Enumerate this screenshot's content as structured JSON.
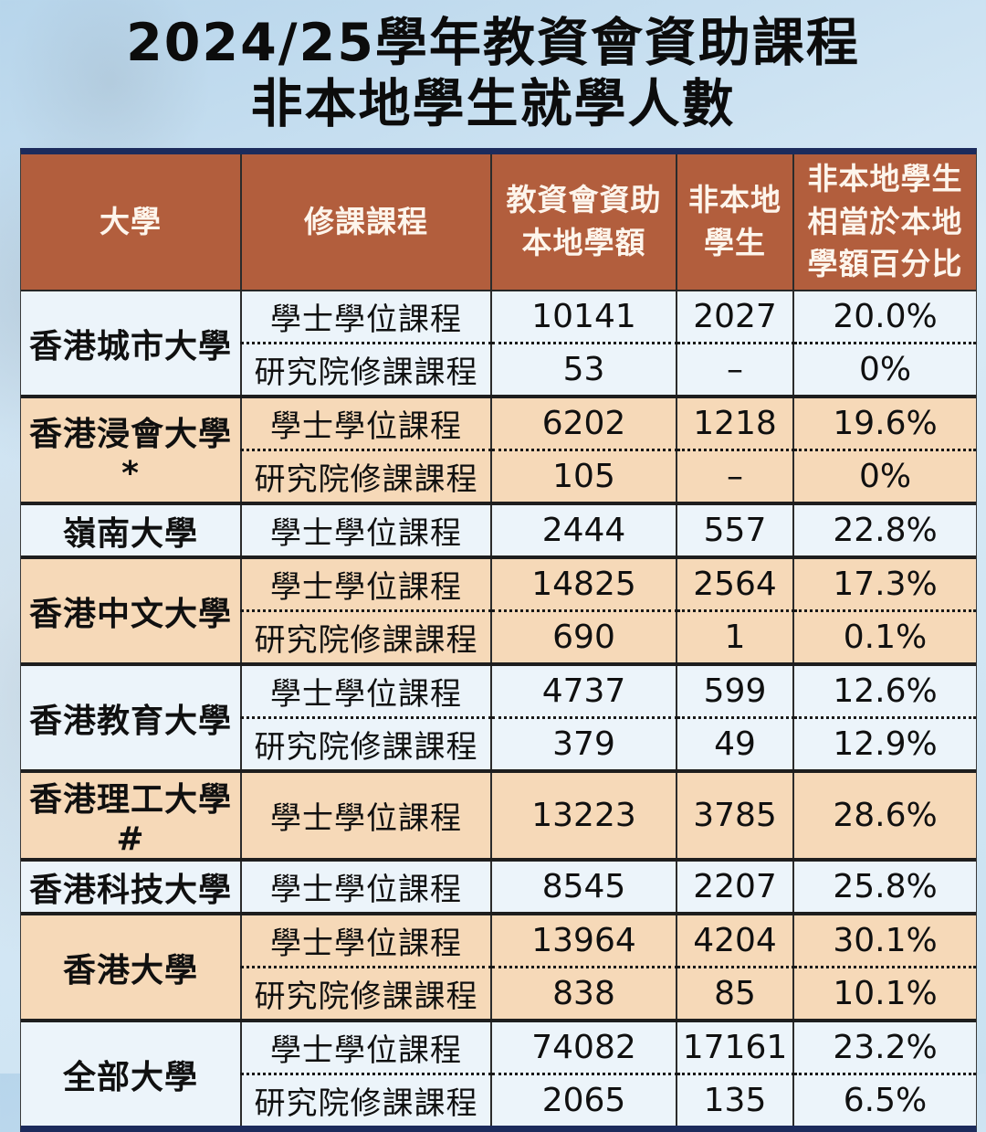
{
  "title": {
    "line1": "2024/25學年教資會資助課程",
    "line2": "非本地學生就學人數"
  },
  "colors": {
    "header_bg": "#b25e3d",
    "header_text": "#fdf5ec",
    "peach_row": "#f6d9b8",
    "light_row": "#ecf4fa",
    "navy_border": "#1c2b5c",
    "page_bg": "#cfe4f3"
  },
  "chart_data": {
    "type": "table",
    "title": "2024/25學年教資會資助課程非本地學生就學人數",
    "columns": {
      "university": "大學",
      "programme": "修課課程",
      "funded_places": "教資會資助\n本地學額",
      "nonlocal_students": "非本地\n學生",
      "percentage": "非本地學生\n相當於本地\n學額百分比"
    },
    "groups": [
      {
        "university": "香港城市大學",
        "shade": "light",
        "rows": [
          {
            "programme": "學士學位課程",
            "funded_places": "10141",
            "nonlocal_students": "2027",
            "percentage": "20.0%"
          },
          {
            "programme": "研究院修課課程",
            "funded_places": "53",
            "nonlocal_students": "–",
            "percentage": "0%"
          }
        ]
      },
      {
        "university": "香港浸會大學*",
        "shade": "peach",
        "rows": [
          {
            "programme": "學士學位課程",
            "funded_places": "6202",
            "nonlocal_students": "1218",
            "percentage": "19.6%"
          },
          {
            "programme": "研究院修課課程",
            "funded_places": "105",
            "nonlocal_students": "–",
            "percentage": "0%"
          }
        ]
      },
      {
        "university": "嶺南大學",
        "shade": "light",
        "rows": [
          {
            "programme": "學士學位課程",
            "funded_places": "2444",
            "nonlocal_students": "557",
            "percentage": "22.8%"
          }
        ]
      },
      {
        "university": "香港中文大學",
        "shade": "peach",
        "rows": [
          {
            "programme": "學士學位課程",
            "funded_places": "14825",
            "nonlocal_students": "2564",
            "percentage": "17.3%"
          },
          {
            "programme": "研究院修課課程",
            "funded_places": "690",
            "nonlocal_students": "1",
            "percentage": "0.1%"
          }
        ]
      },
      {
        "university": "香港教育大學",
        "shade": "light",
        "rows": [
          {
            "programme": "學士學位課程",
            "funded_places": "4737",
            "nonlocal_students": "599",
            "percentage": "12.6%"
          },
          {
            "programme": "研究院修課課程",
            "funded_places": "379",
            "nonlocal_students": "49",
            "percentage": "12.9%"
          }
        ]
      },
      {
        "university": "香港理工大學#",
        "shade": "peach",
        "rows": [
          {
            "programme": "學士學位課程",
            "funded_places": "13223",
            "nonlocal_students": "3785",
            "percentage": "28.6%"
          }
        ]
      },
      {
        "university": "香港科技大學",
        "shade": "light",
        "rows": [
          {
            "programme": "學士學位課程",
            "funded_places": "8545",
            "nonlocal_students": "2207",
            "percentage": "25.8%"
          }
        ]
      },
      {
        "university": "香港大學",
        "shade": "peach",
        "rows": [
          {
            "programme": "學士學位課程",
            "funded_places": "13964",
            "nonlocal_students": "4204",
            "percentage": "30.1%"
          },
          {
            "programme": "研究院修課課程",
            "funded_places": "838",
            "nonlocal_students": "85",
            "percentage": "10.1%"
          }
        ]
      },
      {
        "university": "全部大學",
        "shade": "light",
        "rows": [
          {
            "programme": "學士學位課程",
            "funded_places": "74082",
            "nonlocal_students": "17161",
            "percentage": "23.2%"
          },
          {
            "programme": "研究院修課課程",
            "funded_places": "2065",
            "nonlocal_students": "135",
            "percentage": "6.5%"
          }
        ]
      }
    ]
  }
}
